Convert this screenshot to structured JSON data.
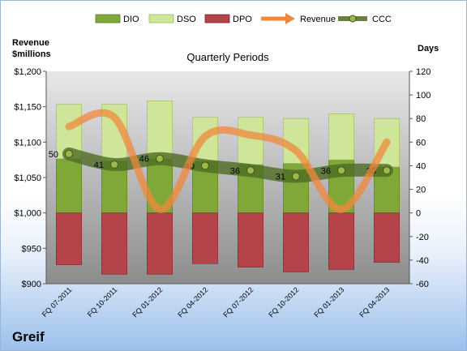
{
  "chart_data": {
    "type": "bar",
    "title": "Quarterly Periods",
    "ylabel_left": "Revenue $millions",
    "ylabel_right": "Days",
    "categories": [
      "FQ 07-2011",
      "FQ 10-2011",
      "FQ 01-2012",
      "FQ 04-2012",
      "FQ 07-2012",
      "FQ 10-2012",
      "FQ 01-2013",
      "FQ 04-2013"
    ],
    "series": [
      {
        "name": "DIO",
        "type": "bar",
        "axis": "days",
        "values": [
          46,
          44,
          46,
          44,
          41,
          42,
          45,
          39
        ],
        "color": "#7fa838"
      },
      {
        "name": "DSO",
        "type": "bar",
        "axis": "days",
        "values": [
          46,
          48,
          49,
          37,
          40,
          38,
          39,
          41
        ],
        "color": "#cfe59a"
      },
      {
        "name": "DPO",
        "type": "bar",
        "axis": "days",
        "values": [
          -44,
          -52,
          -52,
          -43,
          -46,
          -50,
          -48,
          -42
        ],
        "color": "#b5434a"
      },
      {
        "name": "Revenue",
        "type": "line",
        "axis": "revenue",
        "values": [
          1122,
          1135,
          1005,
          1108,
          1110,
          1088,
          1005,
          1100
        ],
        "color": "#f0883c"
      },
      {
        "name": "CCC",
        "type": "line",
        "axis": "days",
        "values": [
          50,
          41,
          46,
          40,
          36,
          31,
          36,
          36
        ],
        "color": "#4e6b22",
        "labels": [
          "50",
          "41",
          "46",
          "40",
          "36",
          "31",
          "36",
          "36"
        ]
      }
    ],
    "left_axis": {
      "min": 900,
      "max": 1200,
      "step": 50,
      "ticks": [
        "$900",
        "$950",
        "$1,000",
        "$1,050",
        "$1,100",
        "$1,150",
        "$1,200"
      ]
    },
    "right_axis": {
      "min": -60,
      "max": 120,
      "step": 20,
      "ticks": [
        "-60",
        "-40",
        "-20",
        "0",
        "20",
        "40",
        "60",
        "80",
        "100",
        "120"
      ]
    },
    "legend_position": "top",
    "grid": false
  },
  "footer": {
    "company": "Greif"
  }
}
